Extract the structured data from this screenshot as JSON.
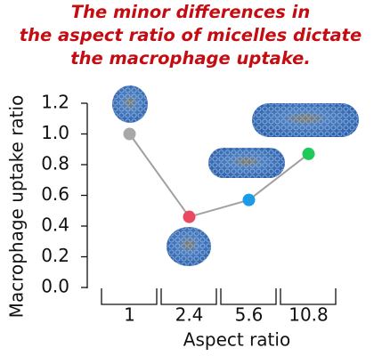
{
  "chart_data": {
    "type": "line",
    "title": [
      "The minor differences in",
      "the aspect ratio of micelles dictate",
      "the macrophage uptake."
    ],
    "x_label": "Aspect ratio",
    "y_label": "Macrophage uptake ratio",
    "categories": [
      "1",
      "2.4",
      "5.6",
      "10.8"
    ],
    "values": [
      1.0,
      0.46,
      0.57,
      0.87
    ],
    "point_colors": [
      "#a8a8a8",
      "#e84a5f",
      "#1c9be6",
      "#1fc95a"
    ],
    "line_color": "#a0a0a0",
    "ylim": [
      0,
      1.2
    ],
    "yticks": [
      {
        "value": 0,
        "label": "0.0"
      },
      0.2,
      0.4,
      0.6,
      0.8,
      {
        "value": 1,
        "label": "1.0"
      },
      1.2
    ]
  }
}
